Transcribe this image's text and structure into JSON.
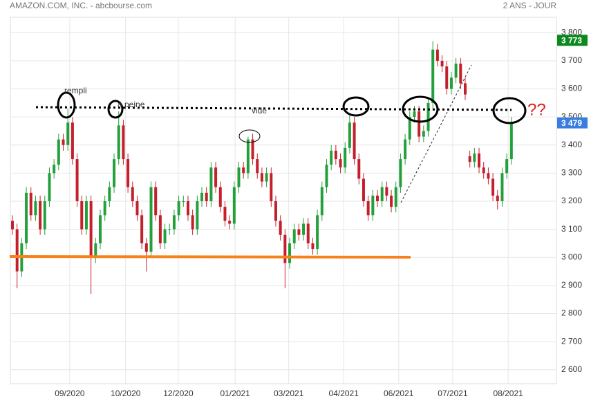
{
  "chart_data": {
    "type": "candlestick",
    "title": "AMAZON.COM, INC. - abcbourse.com",
    "subtitle": "2 ANS - JOUR",
    "up_color": "#23a03c",
    "down_color": "#c4202c",
    "open": [
      3130,
      3100,
      2950,
      3050,
      3230,
      3150,
      3200,
      3100,
      3200,
      3300,
      3330,
      3420,
      3400,
      3480,
      3350,
      3200,
      3100,
      3200,
      3000,
      3050,
      3150,
      3200,
      3250,
      3350,
      3470,
      3350,
      3250,
      3200,
      3150,
      3050,
      3020,
      3250,
      3150,
      3050,
      3100,
      3100,
      3150,
      3200,
      3200,
      3150,
      3100,
      3200,
      3230,
      3200,
      3320,
      3250,
      3180,
      3130,
      3120,
      3250,
      3320,
      3300,
      3420,
      3350,
      3300,
      3270,
      3300,
      3200,
      3130,
      3080,
      2980,
      3050,
      3100,
      3080,
      3120,
      3050,
      3030,
      3150,
      3250,
      3330,
      3380,
      3350,
      3320,
      3390,
      3480,
      3350,
      3280,
      3200,
      3150,
      3220,
      3200,
      3250,
      3220,
      3180,
      3250,
      3350,
      3420,
      3500,
      3520,
      3430,
      3450,
      3550,
      3740,
      3700,
      3680,
      3600,
      3640,
      3690,
      3620,
      3360,
      3340,
      3370,
      3320,
      3300,
      3280,
      3220,
      3200,
      3300,
      3350
    ],
    "high": [
      3150,
      3120,
      3070,
      3250,
      3250,
      3220,
      3220,
      3220,
      3320,
      3350,
      3440,
      3440,
      3530,
      3500,
      3370,
      3220,
      3220,
      3220,
      3070,
      3170,
      3220,
      3270,
      3370,
      3520,
      3490,
      3370,
      3270,
      3220,
      3170,
      3070,
      3270,
      3270,
      3170,
      3120,
      3120,
      3170,
      3220,
      3220,
      3220,
      3170,
      3220,
      3250,
      3250,
      3340,
      3340,
      3270,
      3200,
      3150,
      3270,
      3340,
      3340,
      3430,
      3440,
      3370,
      3320,
      3320,
      3320,
      3220,
      3150,
      3100,
      3070,
      3120,
      3120,
      3140,
      3140,
      3070,
      3170,
      3270,
      3350,
      3400,
      3400,
      3370,
      3410,
      3510,
      3500,
      3370,
      3300,
      3220,
      3240,
      3240,
      3270,
      3270,
      3240,
      3270,
      3370,
      3440,
      3520,
      3540,
      3540,
      3470,
      3570,
      3770,
      3760,
      3720,
      3700,
      3660,
      3710,
      3710,
      3640,
      3380,
      3390,
      3390,
      3340,
      3320,
      3300,
      3240,
      3320,
      3370,
      3500
    ],
    "low": [
      3080,
      2890,
      2930,
      3030,
      3130,
      3130,
      3080,
      3080,
      3180,
      3280,
      3310,
      3380,
      3380,
      3330,
      3180,
      3080,
      3080,
      2870,
      2980,
      3030,
      3130,
      3180,
      3230,
      3330,
      3330,
      3230,
      3180,
      3130,
      3030,
      2950,
      3000,
      3130,
      3030,
      3030,
      3080,
      3080,
      3130,
      3180,
      3130,
      3080,
      3080,
      3180,
      3180,
      3180,
      3230,
      3160,
      3110,
      3100,
      3100,
      3230,
      3280,
      3280,
      3330,
      3280,
      3250,
      3250,
      3180,
      3110,
      3060,
      2890,
      2960,
      3030,
      3060,
      3060,
      3030,
      3010,
      3010,
      3130,
      3230,
      3310,
      3330,
      3300,
      3300,
      3370,
      3330,
      3260,
      3180,
      3130,
      3130,
      3180,
      3180,
      3200,
      3160,
      3160,
      3230,
      3330,
      3400,
      3480,
      3410,
      3410,
      3430,
      3530,
      3680,
      3660,
      3580,
      3580,
      3620,
      3600,
      3560,
      3320,
      3320,
      3300,
      3280,
      3260,
      3200,
      3170,
      3180,
      3280,
      3330
    ],
    "close": [
      3100,
      2950,
      3050,
      3230,
      3150,
      3200,
      3100,
      3200,
      3300,
      3330,
      3420,
      3400,
      3480,
      3350,
      3200,
      3100,
      3200,
      3000,
      3050,
      3150,
      3200,
      3250,
      3350,
      3470,
      3350,
      3250,
      3200,
      3150,
      3050,
      3020,
      3250,
      3150,
      3050,
      3100,
      3100,
      3150,
      3200,
      3200,
      3150,
      3100,
      3200,
      3230,
      3200,
      3320,
      3250,
      3180,
      3130,
      3120,
      3250,
      3320,
      3300,
      3420,
      3350,
      3300,
      3270,
      3300,
      3200,
      3130,
      3080,
      2980,
      3050,
      3100,
      3080,
      3120,
      3050,
      3030,
      3150,
      3250,
      3330,
      3380,
      3350,
      3320,
      3390,
      3480,
      3350,
      3280,
      3200,
      3150,
      3220,
      3200,
      3250,
      3220,
      3180,
      3250,
      3350,
      3420,
      3500,
      3520,
      3430,
      3450,
      3550,
      3740,
      3700,
      3680,
      3600,
      3640,
      3690,
      3620,
      3580,
      3340,
      3370,
      3320,
      3300,
      3280,
      3220,
      3200,
      3300,
      3350,
      3479
    ],
    "xlim": [
      -0.45,
      117.75
    ],
    "xticks": [
      {
        "value": 12.4,
        "label": "09/2020"
      },
      {
        "value": 24.5,
        "label": "10/2020"
      },
      {
        "value": 35.9,
        "label": "12/2020"
      },
      {
        "value": 48.2,
        "label": "01/2021"
      },
      {
        "value": 59.8,
        "label": "03/2021"
      },
      {
        "value": 71.7,
        "label": "04/2021"
      },
      {
        "value": 83.6,
        "label": "06/2021"
      },
      {
        "value": 95.3,
        "label": "07/2021"
      },
      {
        "value": 107.3,
        "label": "08/2021"
      }
    ],
    "ylim": [
      2550,
      3855
    ],
    "yticks": [
      {
        "value": 2600,
        "label": "2 600"
      },
      {
        "value": 2700,
        "label": "2 700"
      },
      {
        "value": 2800,
        "label": "2 800"
      },
      {
        "value": 2900,
        "label": "2 900"
      },
      {
        "value": 3000,
        "label": "3 000"
      },
      {
        "value": 3100,
        "label": "3 100"
      },
      {
        "value": 3200,
        "label": "3 200"
      },
      {
        "value": 3300,
        "label": "3 300"
      },
      {
        "value": 3400,
        "label": "3 400"
      },
      {
        "value": 3500,
        "label": "3 500"
      },
      {
        "value": 3600,
        "label": "3 600"
      },
      {
        "value": 3700,
        "label": "3 700"
      },
      {
        "value": 3800,
        "label": "3 800"
      }
    ],
    "price_tags": [
      {
        "value": 3773,
        "label": "3 773",
        "color": "#0a8a1e"
      },
      {
        "value": 3479,
        "label": "3 479",
        "color": "#3a7de0"
      }
    ],
    "grid": true,
    "annotations": [
      "rempli",
      "à peine",
      "vide",
      "??"
    ]
  }
}
